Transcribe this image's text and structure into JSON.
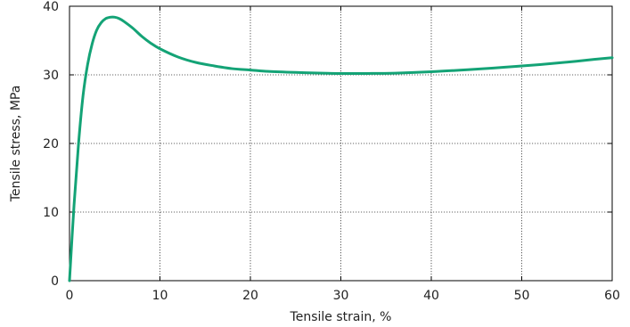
{
  "chart_data": {
    "type": "line",
    "title": "",
    "xlabel": "Tensile strain, %",
    "ylabel": "Tensile stress, MPa",
    "xlim": [
      0,
      60
    ],
    "ylim": [
      0,
      40
    ],
    "xticks": [
      0,
      10,
      20,
      30,
      40,
      50,
      60
    ],
    "yticks": [
      0,
      10,
      20,
      30,
      40
    ],
    "grid": true,
    "legend": "none",
    "series": [
      {
        "color": "#14a376",
        "x": [
          0,
          0.5,
          1,
          1.5,
          2,
          2.5,
          3,
          3.5,
          4,
          4.5,
          5,
          5.5,
          6,
          7,
          8,
          9,
          10,
          12,
          14,
          16,
          18,
          20,
          22,
          25,
          28,
          30,
          33,
          36,
          40,
          44,
          48,
          52,
          55,
          58,
          60
        ],
        "y": [
          0,
          11,
          20,
          27,
          31.5,
          34.5,
          36.5,
          37.6,
          38.2,
          38.4,
          38.4,
          38.2,
          37.8,
          36.8,
          35.6,
          34.6,
          33.8,
          32.6,
          31.8,
          31.3,
          30.9,
          30.7,
          30.5,
          30.35,
          30.25,
          30.2,
          30.2,
          30.25,
          30.45,
          30.75,
          31.1,
          31.5,
          31.85,
          32.25,
          32.5
        ]
      }
    ]
  }
}
